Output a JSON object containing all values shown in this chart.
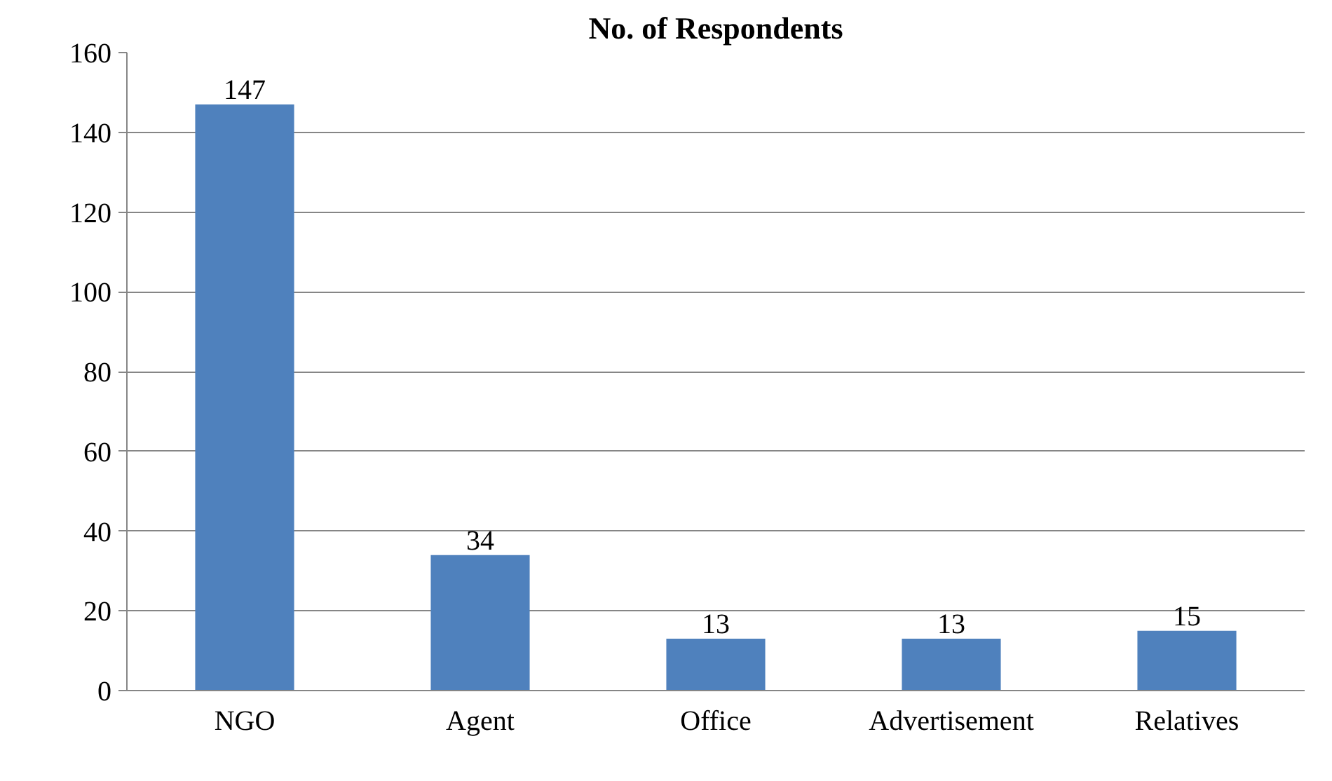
{
  "chart_data": {
    "type": "bar",
    "title": "No. of Respondents",
    "categories": [
      "NGO",
      "Agent",
      "Office",
      "Advertisement",
      "Relatives"
    ],
    "values": [
      147,
      34,
      13,
      13,
      15
    ],
    "color": "#4f81bd",
    "ylim": [
      0,
      160
    ],
    "yticks": [
      0,
      20,
      40,
      60,
      80,
      100,
      120,
      140,
      160
    ],
    "grid": "y",
    "data_labels": true
  }
}
